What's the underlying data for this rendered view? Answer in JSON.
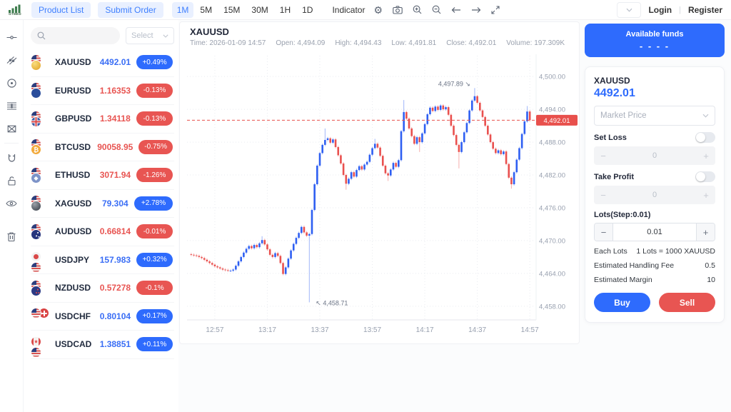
{
  "topbar": {
    "logo_text": "GTMED",
    "product_list": "Product List",
    "submit_order": "Submit Order",
    "timeframes": [
      "1M",
      "5M",
      "15M",
      "30M",
      "1H",
      "1D"
    ],
    "active_timeframe": "1M",
    "indicator": "Indicator",
    "icons": [
      "settings",
      "camera",
      "zoom-in",
      "zoom-out",
      "arrow-left",
      "arrow-right",
      "fullscreen"
    ],
    "login": "Login",
    "divider": "|",
    "register": "Register"
  },
  "toolbar_icons": [
    "trend-line",
    "channel",
    "circle",
    "fib-lines",
    "shape",
    "magnet",
    "unlock",
    "eye",
    "trash"
  ],
  "watchlist": {
    "select_label": "Select",
    "items": [
      {
        "symbol": "XAUUSD",
        "price": "4492.01",
        "change": "+0.49%",
        "dir": "up",
        "base": "gold",
        "quote": "us"
      },
      {
        "symbol": "EURUSD",
        "price": "1.16353",
        "change": "-0.13%",
        "dir": "down",
        "base": "eu",
        "quote": "us"
      },
      {
        "symbol": "GBPUSD",
        "price": "1.34118",
        "change": "-0.13%",
        "dir": "down",
        "base": "gb",
        "quote": "us"
      },
      {
        "symbol": "BTCUSD",
        "price": "90058.95",
        "change": "-0.75%",
        "dir": "down",
        "base": "btc",
        "quote": "us"
      },
      {
        "symbol": "ETHUSD",
        "price": "3071.94",
        "change": "-1.26%",
        "dir": "down",
        "base": "eth",
        "quote": "us"
      },
      {
        "symbol": "XAGUSD",
        "price": "79.304",
        "change": "+2.78%",
        "dir": "up",
        "base": "silver",
        "quote": "us"
      },
      {
        "symbol": "AUDUSD",
        "price": "0.66814",
        "change": "-0.01%",
        "dir": "down",
        "base": "au",
        "quote": "us"
      },
      {
        "symbol": "USDJPY",
        "price": "157.983",
        "change": "+0.32%",
        "dir": "up",
        "base": "us",
        "quote": "jp"
      },
      {
        "symbol": "NZDUSD",
        "price": "0.57278",
        "change": "-0.1%",
        "dir": "down",
        "base": "nz",
        "quote": "us"
      },
      {
        "symbol": "USDCHF",
        "price": "0.80104",
        "change": "+0.17%",
        "dir": "up",
        "base": "us",
        "quote": "ch"
      },
      {
        "symbol": "USDCAD",
        "price": "1.38851",
        "change": "+0.11%",
        "dir": "up",
        "base": "us",
        "quote": "ca"
      }
    ]
  },
  "chart": {
    "symbol": "XAUUSD",
    "info_items": [
      {
        "label": "Time:",
        "value": "2026-01-09 14:57"
      },
      {
        "label": "Open:",
        "value": "4,494.09"
      },
      {
        "label": "High:",
        "value": "4,494.43"
      },
      {
        "label": "Low:",
        "value": "4,491.81"
      },
      {
        "label": "Close:",
        "value": "4,492.01"
      },
      {
        "label": "Volume:",
        "value": "197.309K"
      }
    ]
  },
  "chart_data": {
    "type": "candlestick",
    "symbol": "XAUUSD",
    "interval": "1M",
    "x_ticks": [
      "12:57",
      "13:17",
      "13:37",
      "13:57",
      "14:17",
      "14:37",
      "14:57"
    ],
    "x_tick_indices": [
      9,
      29,
      49,
      69,
      89,
      109,
      129
    ],
    "y_ticks": [
      "4,500.00",
      "4,494.00",
      "4,488.00",
      "4,482.00",
      "4,476.00",
      "4,470.00",
      "4,464.00",
      "4,458.00"
    ],
    "y_tick_values": [
      4500,
      4494,
      4488,
      4482,
      4476,
      4470,
      4464,
      4458
    ],
    "price_max": 4502.5,
    "price_min": 4455.5,
    "current_price": 4492.01,
    "current_price_label": "4,492.01",
    "high_annotation": {
      "label": "4,497.89",
      "arrow": "↘",
      "index": 108,
      "price": 4497.89
    },
    "low_annotation": {
      "label": "4,458.71",
      "arrow": "↖",
      "index": 45,
      "price": 4458.71
    },
    "up_color": "#2e5ff2",
    "down_color": "#e9504e",
    "first_open": 4467.5,
    "closes": [
      4467.4,
      4467.3,
      4467.2,
      4467.0,
      4466.8,
      4466.5,
      4466.2,
      4465.9,
      4465.6,
      4465.3,
      4465.1,
      4464.9,
      4464.7,
      4464.6,
      4464.5,
      4464.5,
      4464.7,
      4465.4,
      4466.2,
      4467.0,
      4467.8,
      4468.5,
      4469.0,
      4468.6,
      4469.2,
      4468.8,
      4469.5,
      4470.1,
      4469.3,
      4468.4,
      4467.4,
      4467.0,
      4467.7,
      4467.2,
      4465.9,
      4463.9,
      4465.1,
      4466.7,
      4468.2,
      4469.4,
      4470.5,
      4471.4,
      4472.5,
      4471.5,
      4470.9,
      4471.2,
      4475.6,
      4480.3,
      4483.7,
      4486.0,
      4487.5,
      4488.4,
      4488.7,
      4487.9,
      4488.5,
      4487.1,
      4485.6,
      4484.1,
      4482.0,
      4480.4,
      4481.3,
      4482.5,
      4481.7,
      4482.9,
      4483.6,
      4483.0,
      4483.9,
      4484.4,
      4485.7,
      4486.9,
      4487.7,
      4487.0,
      4485.5,
      4483.7,
      4482.3,
      4481.9,
      4483.0,
      4484.2,
      4483.5,
      4484.7,
      4490.0,
      4493.5,
      4492.3,
      4490.5,
      4489.1,
      4487.7,
      4488.9,
      4488.0,
      4489.6,
      4491.3,
      4493.1,
      4494.3,
      4493.7,
      4494.5,
      4493.9,
      4494.7,
      4494.0,
      4494.4,
      4493.0,
      4491.0,
      4489.3,
      4487.5,
      4486.2,
      4488.0,
      4489.8,
      4491.5,
      4493.8,
      4495.6,
      4496.4,
      4495.2,
      4493.8,
      4492.6,
      4491.0,
      4489.4,
      4488.0,
      4486.8,
      4486.0,
      4486.5,
      4485.8,
      4486.3,
      4484.0,
      4481.5,
      4480.3,
      4482.5,
      4484.8,
      4486.9,
      4489.5,
      4491.8,
      4493.6,
      4492.01
    ],
    "wick_overrides": {
      "27": {
        "high": 4470.8
      },
      "45": {
        "low": 4458.71
      },
      "51": {
        "high": 4490.5
      },
      "59": {
        "low": 4479.3
      },
      "70": {
        "high": 4488.6
      },
      "75": {
        "low": 4480.9
      },
      "81": {
        "high": 4495.7
      },
      "87": {
        "low": 4486.2
      },
      "102": {
        "low": 4483.2
      },
      "108": {
        "high": 4497.89
      },
      "122": {
        "low": 4479.5
      },
      "128": {
        "high": 4494.6
      }
    }
  },
  "trade_panel": {
    "available_funds_label": "Available funds",
    "available_funds_value": "- - - -",
    "symbol": "XAUUSD",
    "price": "4492.01",
    "order_type": "Market Price",
    "set_loss_label": "Set Loss",
    "set_loss_value": "0",
    "take_profit_label": "Take Profit",
    "take_profit_value": "0",
    "lots_label": "Lots(Step:0.01)",
    "lots_value": "0.01",
    "minus": "−",
    "plus": "+",
    "each_lots_label": "Each Lots",
    "each_lots_value": "1 Lots = 1000 XAUUSD",
    "fee_label": "Estimated Handling Fee",
    "fee_value": "0.5",
    "margin_label": "Estimated Margin",
    "margin_value": "10",
    "buy_label": "Buy",
    "sell_label": "Sell"
  }
}
